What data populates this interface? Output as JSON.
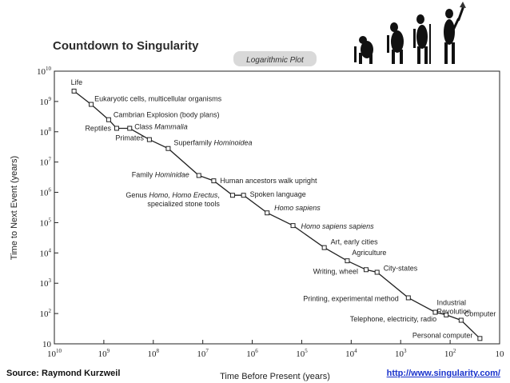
{
  "chart_data": {
    "type": "scatter",
    "title": "Countdown to Singularity",
    "subtitle": "Logarithmic Plot",
    "xlabel": "Time Before Present (years)",
    "ylabel": "Time to Next Event (years)",
    "x_scale": "log-reversed",
    "y_scale": "log",
    "xlim": [
      10000000000,
      10
    ],
    "ylim": [
      10,
      10000000000
    ],
    "x_ticks": [
      {
        "base": "10",
        "exp": "10"
      },
      {
        "base": "10",
        "exp": "9"
      },
      {
        "base": "10",
        "exp": "8"
      },
      {
        "base": "10",
        "exp": "7"
      },
      {
        "base": "10",
        "exp": "6"
      },
      {
        "base": "10",
        "exp": "5"
      },
      {
        "base": "10",
        "exp": "4"
      },
      {
        "base": "10",
        "exp": "3"
      },
      {
        "base": "10",
        "exp": "2"
      },
      {
        "base": "10",
        "exp": ""
      }
    ],
    "y_ticks": [
      {
        "base": "10",
        "exp": "10"
      },
      {
        "base": "10",
        "exp": "9"
      },
      {
        "base": "10",
        "exp": "8"
      },
      {
        "base": "10",
        "exp": "7"
      },
      {
        "base": "10",
        "exp": "6"
      },
      {
        "base": "10",
        "exp": "5"
      },
      {
        "base": "10",
        "exp": "4"
      },
      {
        "base": "10",
        "exp": "3"
      },
      {
        "base": "10",
        "exp": "2"
      },
      {
        "base": "10",
        "exp": ""
      }
    ],
    "grid": false,
    "points": [
      {
        "x": 4000000000,
        "y": 2200000000,
        "label": [
          {
            "t": "Life"
          }
        ]
      },
      {
        "x": 1800000000,
        "y": 800000000,
        "label": [
          {
            "t": "Eukaryotic cells, multicellular organisms"
          }
        ]
      },
      {
        "x": 800000000,
        "y": 250000000,
        "label": [
          {
            "t": "Cambrian Explosion (body plans)"
          }
        ]
      },
      {
        "x": 550000000,
        "y": 130000000,
        "label": [
          {
            "t": "Reptiles"
          }
        ]
      },
      {
        "x": 300000000,
        "y": 130000000,
        "label": [
          {
            "t": "Class "
          },
          {
            "t": "Mammalia",
            "i": true
          }
        ]
      },
      {
        "x": 120000000,
        "y": 55000000,
        "label": [
          {
            "t": "Primates"
          }
        ]
      },
      {
        "x": 50000000,
        "y": 28000000,
        "label": [
          {
            "t": "Superfamily "
          },
          {
            "t": "Hominoidea",
            "i": true
          }
        ]
      },
      {
        "x": 12000000,
        "y": 3600000,
        "label": [
          {
            "t": "Family "
          },
          {
            "t": "Hominidae",
            "i": true
          }
        ]
      },
      {
        "x": 6000000,
        "y": 2400000,
        "label": [
          {
            "t": "Human ancestors walk upright"
          }
        ]
      },
      {
        "x": 2500000,
        "y": 800000,
        "label": [
          {
            "t": "Genus "
          },
          {
            "t": "Homo, Homo Erectus",
            "i": true
          },
          {
            "t": ","
          }
        ],
        "label2": "specialized stone tools"
      },
      {
        "x": 1500000,
        "y": 800000,
        "label": [
          {
            "t": "Spoken language"
          }
        ]
      },
      {
        "x": 500000,
        "y": 210000,
        "label": [
          {
            "t": "Homo sapiens",
            "i": true
          }
        ]
      },
      {
        "x": 150000,
        "y": 80000,
        "label": [
          {
            "t": "Homo sapiens sapiens",
            "i": true
          }
        ]
      },
      {
        "x": 35000,
        "y": 15000,
        "label": [
          {
            "t": "Art, early cities"
          }
        ]
      },
      {
        "x": 12000,
        "y": 5500,
        "label": [
          {
            "t": "Agriculture"
          }
        ]
      },
      {
        "x": 5000,
        "y": 2800,
        "label": [
          {
            "t": "Writing, wheel"
          }
        ]
      },
      {
        "x": 3000,
        "y": 2300,
        "label": [
          {
            "t": "City-states"
          }
        ]
      },
      {
        "x": 700,
        "y": 330,
        "label": [
          {
            "t": "Printing, experimental method"
          }
        ]
      },
      {
        "x": 200,
        "y": 110,
        "label": [
          {
            "t": "Industrial"
          }
        ],
        "label2": "Revolution"
      },
      {
        "x": 120,
        "y": 90,
        "label": [
          {
            "t": "Telephone,  electricity, radio"
          }
        ]
      },
      {
        "x": 60,
        "y": 60,
        "label": [
          {
            "t": "Computer"
          }
        ]
      },
      {
        "x": 25,
        "y": 15,
        "label": [
          {
            "t": "Personal computer"
          }
        ]
      }
    ]
  },
  "footer": {
    "source": "Source: Raymond Kurzweil",
    "url": "http://www.singularity.com/"
  }
}
